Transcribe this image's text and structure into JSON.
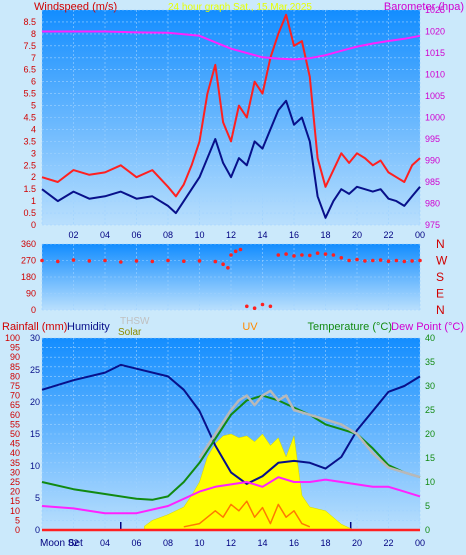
{
  "colors": {
    "background": "#cbe9fb",
    "plot_top": "#138dff",
    "plot_bottom": "#b9dffd",
    "red": "#ff2020",
    "navy": "#08108a",
    "magenta": "#ff22ff",
    "green": "#118a11",
    "yellow": "#ffff00",
    "gray": "#b8b8b8",
    "orange": "#ff7a00",
    "title_yellow": "#ffff00"
  },
  "header": {
    "title": "24 hour graph Sat., 15.Mar.2025"
  },
  "panel_wind": {
    "left_title": "Windspeed (m/s)",
    "right_title": "Barometer (hpa)"
  },
  "panel_direction": {
    "right_letters": [
      "N",
      "W",
      "S",
      "E",
      "N"
    ]
  },
  "panel_bottom": {
    "label_rainfall": "Rainfall (mm)",
    "label_humidity": "Humidity",
    "label_thsw": "THSW",
    "label_solar": "Solar",
    "label_uv": "UV",
    "label_temperature": "Temperature (°C)",
    "label_dewpoint": "Dew Point (°C)",
    "moon_set": "Moon Set"
  },
  "chart_data": [
    {
      "type": "line",
      "id": "wind",
      "x_ticks": [
        "02",
        "04",
        "06",
        "08",
        "10",
        "12",
        "14",
        "16",
        "18",
        "20",
        "22",
        "00"
      ],
      "y_left_ticks": [
        "0",
        "0.5",
        "1",
        "1.5",
        "2",
        "2.5",
        "3",
        "3.5",
        "4",
        "4.5",
        "5",
        "5.5",
        "6",
        "6.5",
        "7",
        "7.5",
        "8",
        "8.5"
      ],
      "y_left_range": [
        0,
        9
      ],
      "y_right_ticks": [
        "975",
        "980",
        "985",
        "990",
        "995",
        "1000",
        "1005",
        "1010",
        "1015",
        "1020",
        "1025"
      ],
      "y_right_range": [
        975,
        1025
      ],
      "series": [
        {
          "name": "gust",
          "color": "#ff2020",
          "x": [
            0,
            1,
            2,
            3,
            4,
            5,
            6,
            7,
            8,
            8.5,
            9,
            9.5,
            10,
            10.5,
            11,
            11.5,
            12,
            12.5,
            13,
            13.5,
            14,
            14.5,
            15,
            15.5,
            16,
            16.5,
            17,
            17.5,
            18,
            18.5,
            19,
            19.5,
            20,
            20.5,
            21,
            21.5,
            22,
            22.5,
            23,
            23.5,
            24
          ],
          "values": [
            2.0,
            1.8,
            2.3,
            2.1,
            2.2,
            2.5,
            2.0,
            2.3,
            1.6,
            1.2,
            1.7,
            2.5,
            3.5,
            5.5,
            6.7,
            4.3,
            3.5,
            5.0,
            4.5,
            6.0,
            5.5,
            7.0,
            8.0,
            8.8,
            7.5,
            7.7,
            6.2,
            2.8,
            1.6,
            2.3,
            3.0,
            2.6,
            3.0,
            2.8,
            2.5,
            2.7,
            2.2,
            2.0,
            1.8,
            2.5,
            2.8
          ]
        },
        {
          "name": "wind",
          "color": "#08108a",
          "x": [
            0,
            1,
            2,
            3,
            4,
            5,
            6,
            7,
            8,
            8.5,
            9,
            9.5,
            10,
            10.5,
            11,
            11.5,
            12,
            12.5,
            13,
            13.5,
            14,
            14.5,
            15,
            15.5,
            16,
            16.5,
            17,
            17.5,
            18,
            18.5,
            19,
            19.5,
            20,
            20.5,
            21,
            21.5,
            22,
            22.5,
            23,
            23.5,
            24
          ],
          "values": [
            1.5,
            1.0,
            1.4,
            1.1,
            1.2,
            1.4,
            1.1,
            1.2,
            0.8,
            0.5,
            1.0,
            1.5,
            2.0,
            2.8,
            3.6,
            2.6,
            2.0,
            2.8,
            2.5,
            3.5,
            3.2,
            4.0,
            4.8,
            5.2,
            4.2,
            4.5,
            3.5,
            1.2,
            0.3,
            1.0,
            1.5,
            1.3,
            1.6,
            1.5,
            1.4,
            1.5,
            1.1,
            1.0,
            0.8,
            1.2,
            1.6
          ]
        },
        {
          "name": "barometer",
          "axis": "right",
          "color": "#ff22ff",
          "x": [
            0,
            2,
            4,
            6,
            8,
            10,
            11,
            12,
            13,
            14,
            15,
            16,
            17,
            18,
            19,
            20,
            21,
            22,
            23,
            24
          ],
          "values": [
            1020,
            1020,
            1020,
            1019.8,
            1019.7,
            1019,
            1017.5,
            1016,
            1015,
            1014,
            1013.7,
            1013.5,
            1013.8,
            1014.5,
            1015.5,
            1016.5,
            1017.2,
            1017.8,
            1018.3,
            1019
          ]
        }
      ]
    },
    {
      "type": "scatter",
      "id": "wind_direction",
      "y_ticks": [
        "0",
        "90",
        "180",
        "270",
        "360"
      ],
      "y_range": [
        0,
        360
      ],
      "series": [
        {
          "name": "direction",
          "color": "#ff2020",
          "x": [
            0,
            1,
            2,
            3,
            4,
            5,
            6,
            7,
            8,
            9,
            10,
            11,
            11.5,
            11.8,
            12,
            12.3,
            12.6,
            13,
            13.5,
            14,
            14.5,
            15,
            15.5,
            16,
            16.5,
            17,
            17.5,
            18,
            18.5,
            19,
            19.5,
            20,
            20.5,
            21,
            21.5,
            22,
            22.5,
            23,
            23.5,
            24
          ],
          "values": [
            270,
            265,
            272,
            268,
            270,
            262,
            268,
            265,
            270,
            266,
            268,
            264,
            250,
            230,
            300,
            320,
            330,
            20,
            10,
            30,
            20,
            300,
            305,
            295,
            300,
            298,
            310,
            305,
            300,
            285,
            270,
            275,
            268,
            270,
            272,
            266,
            270,
            265,
            268,
            270
          ]
        }
      ]
    },
    {
      "type": "line",
      "id": "weather",
      "x_ticks": [
        "02",
        "04",
        "06",
        "08",
        "10",
        "12",
        "14",
        "16",
        "18",
        "20",
        "22",
        "00"
      ],
      "y_rainfall_ticks": [
        "0",
        "5",
        "10",
        "15",
        "20",
        "25",
        "30",
        "35",
        "40",
        "45",
        "50",
        "55",
        "60",
        "65",
        "70",
        "75",
        "80",
        "85",
        "90",
        "95",
        "100"
      ],
      "y_rainfall_range": [
        0,
        100
      ],
      "y_humidity_ticks": [
        "0",
        "5",
        "10",
        "15",
        "20",
        "25",
        "30"
      ],
      "y_humidity_range": [
        0,
        30
      ],
      "y_temperature_ticks": [
        "0",
        "5",
        "10",
        "15",
        "20",
        "25",
        "30",
        "35",
        "40"
      ],
      "y_temperature_range": [
        0,
        40
      ],
      "series": [
        {
          "name": "Humidity",
          "axis": "rainfall",
          "color": "#08108a",
          "x": [
            0,
            2,
            4,
            5,
            6,
            8,
            9,
            10,
            11,
            12,
            13,
            14,
            15,
            16,
            17,
            18,
            19,
            20,
            21,
            22,
            23,
            24
          ],
          "values": [
            73,
            78,
            82,
            86,
            84,
            80,
            73,
            62,
            44,
            30,
            24,
            28,
            35,
            36,
            35,
            32,
            38,
            52,
            62,
            72,
            75,
            80
          ]
        },
        {
          "name": "Temperature",
          "axis": "temperature",
          "color": "#118a11",
          "x": [
            0,
            2,
            4,
            6,
            7,
            8,
            9,
            10,
            11,
            12,
            13,
            14,
            15,
            16,
            17,
            18,
            19,
            20,
            21,
            22,
            23,
            24
          ],
          "values": [
            10,
            8.5,
            7.5,
            6.5,
            6.3,
            7,
            10,
            14,
            19,
            24,
            27,
            28,
            27,
            25.5,
            24,
            22,
            21,
            20,
            17,
            13.5,
            12,
            11
          ]
        },
        {
          "name": "THSW",
          "axis": "temperature",
          "color": "#b8b8b8",
          "x": [
            10,
            11,
            12,
            12.5,
            13,
            13.5,
            14,
            14.5,
            15,
            15.5,
            16,
            17,
            18,
            19,
            20,
            21,
            22,
            23,
            24
          ],
          "values": [
            15,
            20,
            25,
            27,
            28,
            26,
            28,
            29,
            27,
            28,
            25,
            24,
            23,
            22,
            20,
            16,
            13,
            12,
            11
          ]
        },
        {
          "name": "Dew Point",
          "axis": "temperature",
          "color": "#ff22ff",
          "x": [
            0,
            2,
            4,
            6,
            8,
            10,
            11,
            12,
            13,
            14,
            15,
            16,
            17,
            18,
            19,
            20,
            21,
            22,
            23,
            24
          ],
          "values": [
            5,
            4.5,
            3.5,
            3.5,
            5,
            8,
            9,
            9.5,
            10,
            9,
            11,
            10,
            10,
            10.5,
            10,
            9.5,
            9,
            9,
            8,
            7
          ]
        },
        {
          "name": "Solar",
          "axis": "rainfall",
          "color": "#ffff00",
          "x": [
            6.5,
            7,
            8,
            9,
            9.5,
            10,
            10.5,
            11,
            11.5,
            12,
            12.5,
            13,
            13.5,
            14,
            14.5,
            15,
            15.5,
            16,
            16.5,
            17,
            18,
            19,
            19.8
          ],
          "values": [
            2,
            5,
            8,
            12,
            18,
            25,
            38,
            45,
            49,
            50,
            48,
            49,
            46,
            50,
            44,
            48,
            38,
            49,
            18,
            12,
            10,
            3,
            0
          ]
        },
        {
          "name": "UV",
          "axis": "humidity",
          "color": "#ff7a00",
          "x": [
            9,
            10,
            11,
            11.5,
            12,
            12.5,
            13,
            13.5,
            14,
            14.5,
            15,
            15.5,
            16,
            16.5,
            17
          ],
          "values": [
            0.5,
            1,
            3,
            2,
            4,
            3,
            4.5,
            2,
            3.5,
            1,
            4,
            2,
            3,
            1,
            0.5
          ]
        },
        {
          "name": "Rainfall",
          "axis": "rainfall",
          "color": "#ff2020",
          "x": [
            0,
            24
          ],
          "values": [
            0,
            0
          ]
        }
      ]
    }
  ]
}
